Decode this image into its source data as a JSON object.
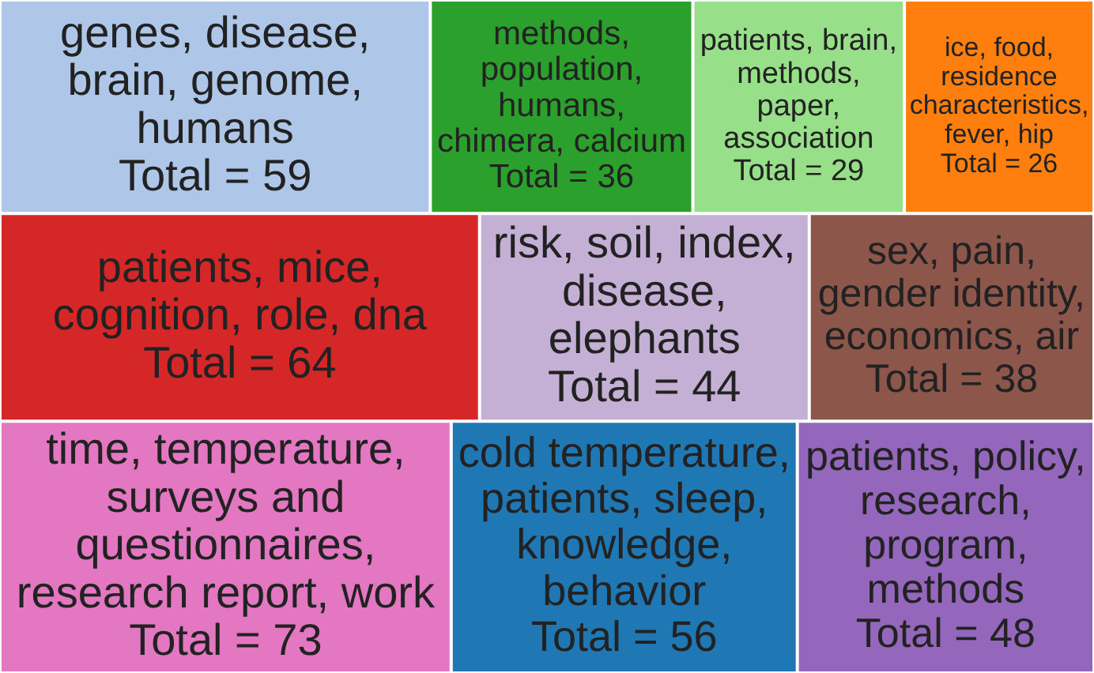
{
  "chart_data": {
    "type": "other",
    "categories": [
      "genes, disease, brain, genome, humans",
      "methods, population, humans, chimera, calcium",
      "patients, brain, methods, paper, association",
      "ice, food, residence characteristics, fever, hip",
      "patients, mice, cognition, role, dna",
      "risk, soil, index, disease, elephants",
      "sex, pain, gender identity, economics, air",
      "time, temperature, surveys and questionnaires, research report, work",
      "cold temperature, patients, sleep, knowledge, behavior",
      "patients, policy, research, program, methods"
    ],
    "values": [
      59,
      36,
      29,
      26,
      64,
      44,
      38,
      73,
      56,
      48
    ],
    "value_labels": [
      "Total = 59",
      "Total = 36",
      "Total = 29",
      "Total = 26",
      "Total = 64",
      "Total = 44",
      "Total = 38",
      "Total = 73",
      "Total = 56",
      "Total = 48"
    ],
    "colors": [
      "#aec7e8",
      "#2ca02c",
      "#98df8a",
      "#ff7f0e",
      "#d62728",
      "#c5b0d5",
      "#8c564b",
      "#e377c2",
      "#1f77b4",
      "#9467bd"
    ]
  }
}
